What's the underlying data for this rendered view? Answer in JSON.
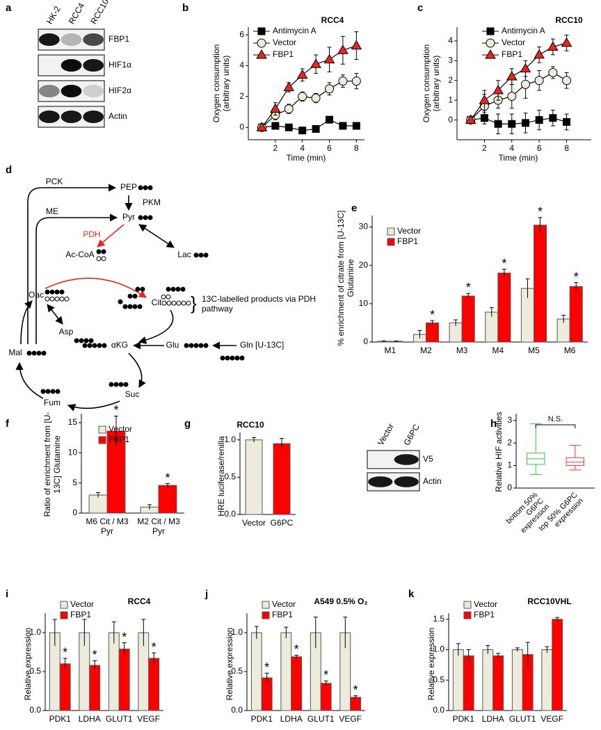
{
  "chart_data": [
    {
      "type": "blot",
      "label": "a",
      "lanes": [
        "HK-2",
        "RCC4",
        "RCC10"
      ],
      "rows": [
        "FBP1",
        "HIF1α",
        "HIF2α",
        "Actin"
      ]
    },
    {
      "type": "line",
      "label": "b",
      "title": "RCC4",
      "xlabel": "Time (min)",
      "ylabel": "Oxygen consumption (arbitrary units)",
      "x": [
        1,
        2,
        3,
        4,
        5,
        6,
        7,
        8
      ],
      "xlim": [
        0,
        8.6
      ],
      "xticks": [
        2,
        4,
        6,
        8
      ],
      "ylim": [
        -0.8,
        6.5
      ],
      "yticks": [
        0,
        2,
        4,
        6
      ],
      "series": [
        {
          "name": "Antimycin A",
          "color": "#000000",
          "marker": "square",
          "values": [
            0,
            0.1,
            0,
            -0.2,
            -0.1,
            0.5,
            0.1,
            0.1
          ],
          "errors": [
            0.1,
            0.2,
            0.2,
            0.2,
            0.2,
            0.2,
            0.2,
            0.2
          ]
        },
        {
          "name": "Vector",
          "color": "#ecebdc",
          "marker": "circle",
          "values": [
            0,
            0.8,
            1.2,
            2,
            1.9,
            2.5,
            3,
            3
          ],
          "errors": [
            0.1,
            0.3,
            0.3,
            0.3,
            0.3,
            0.4,
            0.4,
            0.5
          ]
        },
        {
          "name": "FBP1",
          "color": "#e8261f",
          "marker": "triangle",
          "values": [
            0,
            1.2,
            2.6,
            3.4,
            4.1,
            4.4,
            5,
            5.3
          ],
          "errors": [
            0.1,
            0.4,
            0.3,
            0.4,
            0.6,
            0.8,
            0.9,
            0.9
          ]
        }
      ]
    },
    {
      "type": "line",
      "label": "c",
      "title": "RCC10",
      "xlabel": "Time (min)",
      "ylabel": "Oxygen consumption (arbitrary units)",
      "x": [
        1,
        2,
        3,
        4,
        5,
        6,
        7,
        8
      ],
      "xlim": [
        0,
        9.8
      ],
      "xticks": [
        2,
        4,
        6,
        8
      ],
      "ylim": [
        -1,
        4.7
      ],
      "yticks": [
        0,
        1,
        2,
        3,
        4
      ],
      "series": [
        {
          "name": "Antimycin A",
          "color": "#000000",
          "marker": "square",
          "values": [
            0,
            0.1,
            -0.2,
            -0.2,
            -0.15,
            0,
            0.1,
            -0.1
          ],
          "errors": [
            0.1,
            0.3,
            0.5,
            0.5,
            0.5,
            0.5,
            0.4,
            0.4
          ]
        },
        {
          "name": "Vector",
          "color": "#ecebdc",
          "marker": "circle",
          "values": [
            0,
            0.7,
            1,
            1.2,
            1.8,
            2,
            2.4,
            2
          ],
          "errors": [
            0.1,
            0.6,
            0.4,
            0.6,
            0.7,
            0.5,
            0.3,
            0.4
          ]
        },
        {
          "name": "FBP1",
          "color": "#e8261f",
          "marker": "triangle",
          "values": [
            0,
            1,
            1.5,
            2.2,
            2.6,
            3.3,
            3.7,
            3.9
          ],
          "errors": [
            0.1,
            0.5,
            0.5,
            0.4,
            0.4,
            0.4,
            0.4,
            0.4
          ]
        }
      ]
    },
    {
      "type": "diagram",
      "label": "d",
      "labels": [
        "PCK",
        "PEP",
        "PKM",
        "ME",
        "Pyr",
        "PDH",
        "Lac",
        "Ac-CoA",
        "Oac",
        "Cit",
        "13C-labelled products via PDH pathway",
        "Asp",
        "αKG",
        "Glu",
        "Gln [U-13C]",
        "Mal",
        "Fum",
        "Suc"
      ]
    },
    {
      "type": "bar",
      "label": "e",
      "ylabel": "% enrichment of citrate from [U-13C] Glutamine",
      "categories": [
        "M1",
        "M2",
        "M3",
        "M4",
        "M5",
        "M6"
      ],
      "ylim": [
        0,
        33
      ],
      "yticks": [
        0,
        10,
        20,
        30
      ],
      "series": [
        {
          "name": "Vector",
          "color": "#ecebdc",
          "values": [
            0.2,
            2,
            5,
            7.8,
            14,
            6
          ],
          "errors": [
            0.1,
            1,
            0.8,
            1.2,
            2.5,
            1
          ]
        },
        {
          "name": "FBP1",
          "color": "#ff0000",
          "values": [
            0.2,
            5,
            12,
            18,
            30.5,
            14.5
          ],
          "errors": [
            0.1,
            0.6,
            0.7,
            1,
            2,
            1
          ],
          "significance": [
            null,
            "*",
            "*",
            "*",
            "*",
            "*"
          ]
        }
      ]
    },
    {
      "type": "bar",
      "label": "f",
      "ylabel": "Ratio of enrichment from [U-13C] Glutamine",
      "categories": [
        "M6 Cit / M3 Pyr",
        "M2 Cit / M3 Pyr"
      ],
      "ylim": [
        0,
        16.5
      ],
      "yticks": [
        0,
        5,
        10,
        15
      ],
      "series": [
        {
          "name": "Vector",
          "color": "#ecebdc",
          "values": [
            3,
            1
          ],
          "errors": [
            0.4,
            0.4
          ]
        },
        {
          "name": "FBP1",
          "color": "#ff0000",
          "values": [
            13.6,
            4.6
          ],
          "errors": [
            2.5,
            0.3
          ],
          "significance": [
            "*",
            "*"
          ]
        }
      ]
    },
    {
      "type": "bar",
      "label": "g",
      "title": "RCC10",
      "ylabel": "HRE luciferase/renilla",
      "categories": [
        "Vector",
        "G6PC"
      ],
      "values": [
        1,
        0.95
      ],
      "errors": [
        0.03,
        0.07
      ],
      "colors": [
        "#ecebdc",
        "#ff0000"
      ],
      "ylim": [
        0,
        1.1
      ],
      "yticks": [
        {
          "value": 0,
          "label": "0.0"
        },
        {
          "value": 0.5,
          "label": "0.5"
        },
        {
          "value": 1,
          "label": "1.0"
        }
      ],
      "blot": {
        "lanes": [
          "Vector",
          "G6PC"
        ],
        "rows": [
          "V5",
          "Actin"
        ]
      }
    },
    {
      "type": "box",
      "label": "h",
      "ylabel": "Relative HIF activities",
      "annotation": "N.S.",
      "ylim": [
        0,
        3.3
      ],
      "yticks": [
        0,
        1,
        2,
        3
      ],
      "boxes": [
        {
          "name": "bottom 50% G6PC expression",
          "color": "#33cc33",
          "min": 0.6,
          "q1": 1.05,
          "median": 1.3,
          "q3": 1.55,
          "max": 2.85
        },
        {
          "name": "top 50% G6PC expression",
          "color": "#ff3333",
          "min": 0.8,
          "q1": 1.0,
          "median": 1.15,
          "q3": 1.35,
          "max": 1.9
        }
      ]
    },
    {
      "type": "bar",
      "label": "i",
      "title": "RCC4",
      "ylabel": "Relative expression",
      "categories": [
        "PDK1",
        "LDHA",
        "GLUT1",
        "VEGF"
      ],
      "ylim": [
        0,
        1.25
      ],
      "yticks": [
        {
          "value": 0,
          "label": "0.0"
        },
        {
          "value": 0.5,
          "label": "0.5"
        },
        {
          "value": 1,
          "label": "1.0"
        }
      ],
      "series": [
        {
          "name": "Vector",
          "color": "#ecebdc",
          "values": [
            1,
            1,
            1,
            1
          ],
          "errors": [
            0.17,
            0.17,
            0.14,
            0.17
          ]
        },
        {
          "name": "FBP1",
          "color": "#ff0000",
          "values": [
            0.6,
            0.58,
            0.79,
            0.67
          ],
          "errors": [
            0.07,
            0.06,
            0.08,
            0.07
          ],
          "significance": [
            "*",
            "*",
            "*",
            "*"
          ]
        }
      ]
    },
    {
      "type": "bar",
      "label": "j",
      "title": "A549 0.5% O₂",
      "ylabel": "Relative expression",
      "categories": [
        "PDK1",
        "LDHA",
        "GLUT1",
        "VEGF"
      ],
      "ylim": [
        0,
        1.25
      ],
      "yticks": [
        {
          "value": 0,
          "label": "0.0"
        },
        {
          "value": 0.5,
          "label": "0.5"
        },
        {
          "value": 1,
          "label": "1.0"
        }
      ],
      "series": [
        {
          "name": "Vector",
          "color": "#ecebdc",
          "values": [
            1,
            1,
            1,
            1
          ],
          "errors": [
            0.08,
            0.07,
            0.2,
            0.2
          ]
        },
        {
          "name": "FBP1",
          "color": "#ff0000",
          "values": [
            0.42,
            0.69,
            0.35,
            0.17
          ],
          "errors": [
            0.06,
            0.02,
            0.03,
            0.02
          ],
          "significance": [
            "*",
            "*",
            "*",
            "*"
          ]
        }
      ]
    },
    {
      "type": "bar",
      "label": "k",
      "title": "RCC10VHL",
      "ylabel": "Relative expression",
      "categories": [
        "PDK1",
        "LDHA",
        "GLUT1",
        "VEGF"
      ],
      "ylim": [
        0,
        1.6
      ],
      "yticks": [
        {
          "value": 0,
          "label": "0.0"
        },
        {
          "value": 0.5,
          "label": "0.5"
        },
        {
          "value": 1,
          "label": "1.0"
        },
        {
          "value": 1.5,
          "label": "1.5"
        }
      ],
      "series": [
        {
          "name": "Vector",
          "color": "#ecebdc",
          "values": [
            1,
            1,
            1,
            1
          ],
          "errors": [
            0.1,
            0.07,
            0.03,
            0.05
          ]
        },
        {
          "name": "FBP1",
          "color": "#ff0000",
          "values": [
            0.9,
            0.9,
            0.92,
            1.5
          ],
          "errors": [
            0.1,
            0.04,
            0.2,
            0.03
          ]
        }
      ]
    }
  ]
}
